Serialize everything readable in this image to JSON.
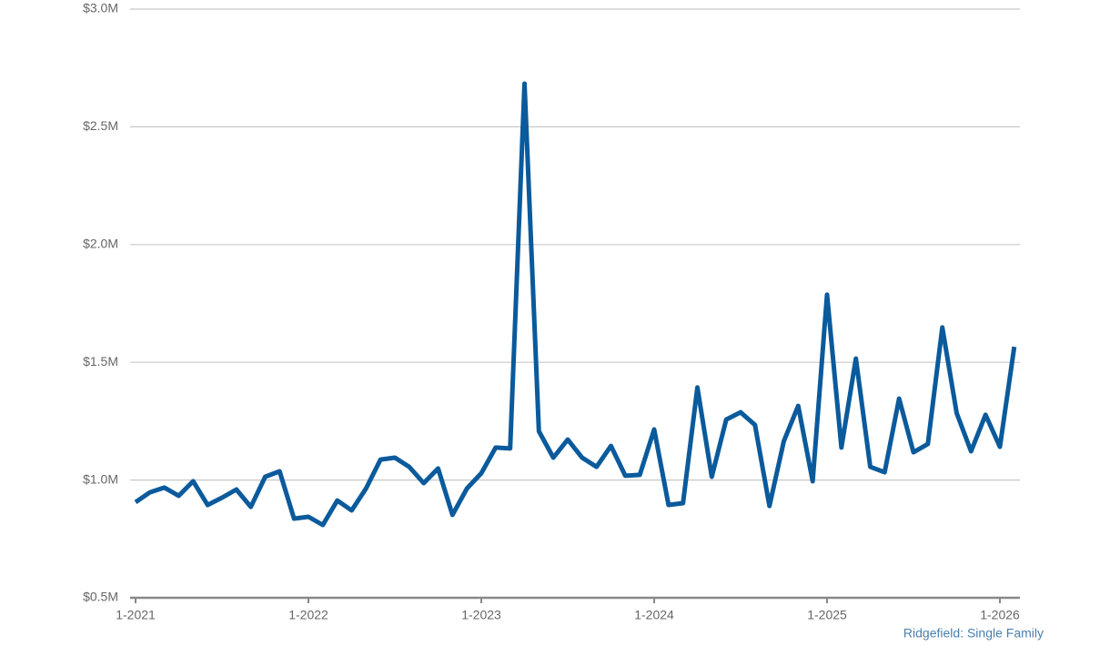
{
  "chart_data": {
    "type": "line",
    "categories": [
      "1-2021",
      null,
      null,
      null,
      null,
      null,
      null,
      null,
      null,
      null,
      null,
      null,
      "1-2022",
      null,
      null,
      null,
      null,
      null,
      null,
      null,
      null,
      null,
      null,
      null,
      "1-2023",
      null,
      null,
      null,
      null,
      null,
      null,
      null,
      null,
      null,
      null,
      null,
      "1-2024",
      null,
      null,
      null,
      null,
      null,
      null,
      null,
      null,
      null,
      null,
      null,
      "1-2025",
      null,
      null,
      null,
      null,
      null,
      null,
      null,
      null,
      null,
      null,
      null,
      "1-2026",
      null
    ],
    "series": [
      {
        "name": "Ridgefield: Single Family",
        "color": "#0a5a9c",
        "values": [
          0.906,
          0.948,
          0.968,
          0.933,
          0.995,
          0.894,
          0.925,
          0.96,
          0.886,
          1.014,
          1.037,
          0.836,
          0.844,
          0.809,
          0.913,
          0.871,
          0.964,
          1.087,
          1.095,
          1.056,
          0.987,
          1.049,
          0.852,
          0.964,
          1.029,
          1.138,
          1.134,
          2.683,
          1.207,
          1.095,
          1.172,
          1.095,
          1.056,
          1.145,
          1.018,
          1.022,
          1.215,
          0.894,
          0.902,
          1.393,
          1.014,
          1.257,
          1.288,
          1.234,
          0.89,
          1.165,
          1.315,
          0.995,
          1.787,
          1.138,
          1.516,
          1.056,
          1.033,
          1.346,
          1.118,
          1.153,
          1.648,
          1.284,
          1.122,
          1.277,
          1.141,
          1.566
        ]
      }
    ],
    "ylim": [
      0.5,
      3.0
    ],
    "yticks": [
      {
        "value": 0.5,
        "label": "$0.5M"
      },
      {
        "value": 1.0,
        "label": "$1.0M"
      },
      {
        "value": 1.5,
        "label": "$1.5M"
      },
      {
        "value": 2.0,
        "label": "$2.0M"
      },
      {
        "value": 2.5,
        "label": "$2.5M"
      },
      {
        "value": 3.0,
        "label": "$3.0M"
      }
    ],
    "grid": true
  }
}
